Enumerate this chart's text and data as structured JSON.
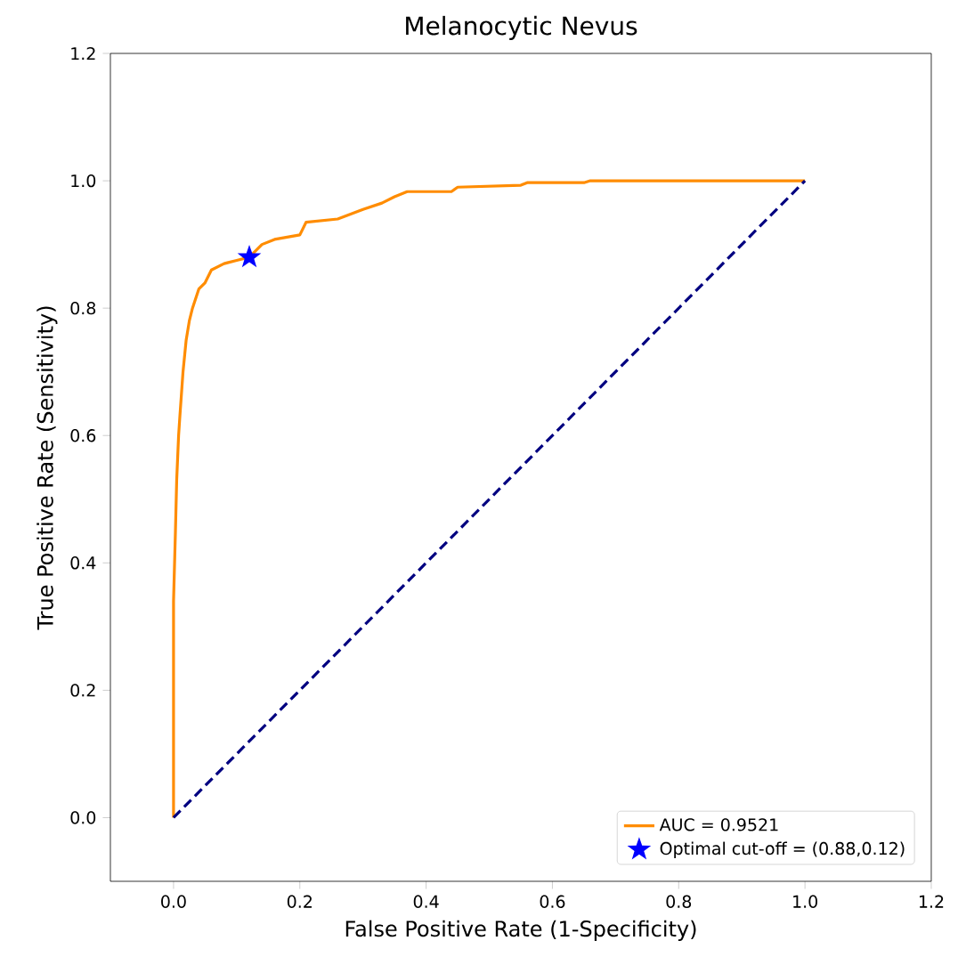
{
  "chart_data": {
    "type": "line",
    "title": "Melanocytic Nevus",
    "xlabel": "False Positive Rate (1-Specificity)",
    "ylabel": "True Positive Rate (Sensitivity)",
    "xlim": [
      -0.1,
      1.2
    ],
    "ylim": [
      -0.1,
      1.2
    ],
    "xticks": [
      {
        "value": 0,
        "label": "0.0"
      },
      {
        "value": 0.2,
        "label": "0.2"
      },
      {
        "value": 0.4,
        "label": "0.4"
      },
      {
        "value": 0.6,
        "label": "0.6"
      },
      {
        "value": 0.8,
        "label": "0.8"
      },
      {
        "value": 1,
        "label": "1.0"
      },
      {
        "value": 1.2,
        "label": "1.2"
      }
    ],
    "yticks": [
      {
        "value": 0,
        "label": "0.0"
      },
      {
        "value": 0.2,
        "label": "0.2"
      },
      {
        "value": 0.4,
        "label": "0.4"
      },
      {
        "value": 0.6,
        "label": "0.6"
      },
      {
        "value": 0.8,
        "label": "0.8"
      },
      {
        "value": 1,
        "label": "1.0"
      },
      {
        "value": 1.2,
        "label": "1.2"
      }
    ],
    "legend": "bottom right",
    "series": [
      {
        "name": "AUC = 0.9521",
        "color": "#ff8c00",
        "line_style": "solid",
        "x": [
          0,
          0,
          0.003,
          0.005,
          0.008,
          0.01,
          0.015,
          0.02,
          0.025,
          0.03,
          0.04,
          0.05,
          0.06,
          0.08,
          0.1,
          0.12,
          0.14,
          0.16,
          0.2,
          0.21,
          0.26,
          0.3,
          0.33,
          0.35,
          0.37,
          0.44,
          0.45,
          0.55,
          0.56,
          0.65,
          0.66,
          1.0
        ],
        "values": [
          0,
          0.34,
          0.45,
          0.53,
          0.6,
          0.63,
          0.7,
          0.75,
          0.78,
          0.8,
          0.83,
          0.84,
          0.86,
          0.87,
          0.875,
          0.88,
          0.9,
          0.908,
          0.915,
          0.935,
          0.94,
          0.955,
          0.965,
          0.975,
          0.983,
          0.983,
          0.99,
          0.993,
          0.997,
          0.997,
          1.0,
          1.0
        ]
      },
      {
        "color": "#000080",
        "line_style": "dashed",
        "x": [
          0,
          1
        ],
        "values": [
          0,
          1
        ]
      },
      {
        "name": "Optimal cut-off = (0.88,0.12)",
        "type": "scatter",
        "marker": "star",
        "color": "#0000ff",
        "x": [
          0.12
        ],
        "values": [
          0.88
        ]
      }
    ]
  }
}
